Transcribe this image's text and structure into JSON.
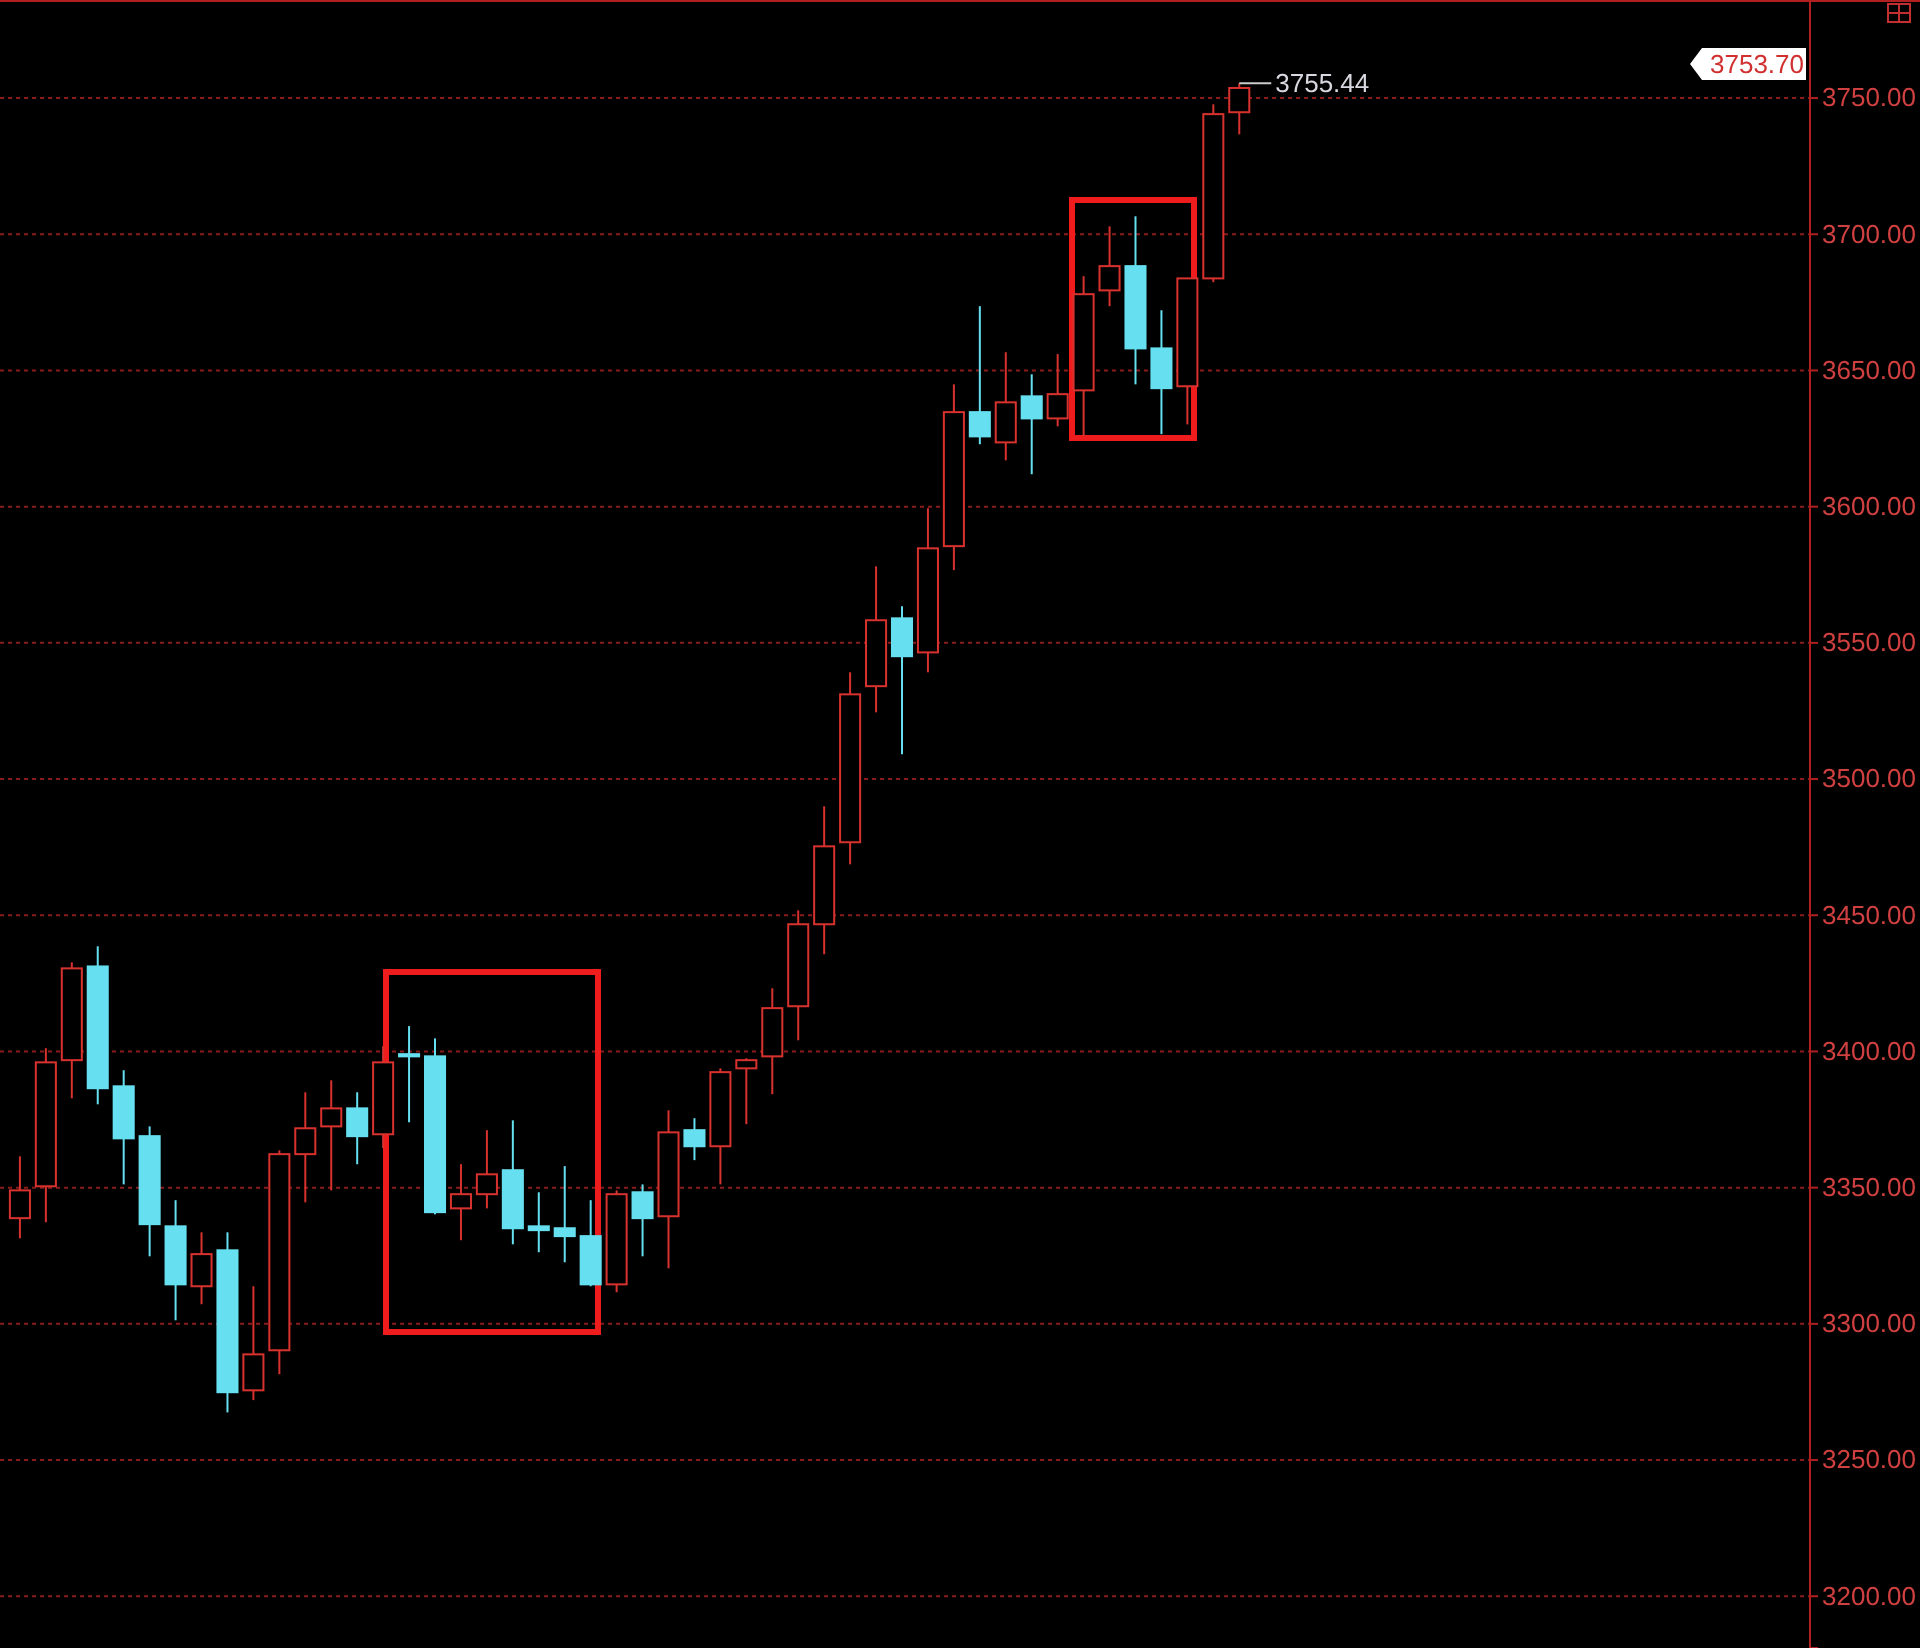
{
  "chart_data": {
    "type": "candlestick",
    "categories": [
      null,
      null,
      null,
      null,
      null,
      null,
      null,
      null,
      null,
      null,
      null,
      null,
      null,
      null,
      null,
      null,
      null,
      null,
      null,
      null,
      null,
      null,
      null,
      null,
      null,
      null,
      null,
      null,
      null,
      null,
      null,
      null,
      null,
      null,
      null,
      null,
      null,
      null,
      null,
      null,
      null,
      null,
      null,
      null,
      null,
      null,
      null,
      null,
      null,
      null,
      null,
      null,
      null,
      null,
      null,
      null,
      null,
      null,
      null,
      null,
      null,
      null,
      null,
      null,
      null,
      null,
      null,
      null,
      null
    ],
    "ohlc": [
      [
        3338.8,
        3361.5,
        3331.4,
        3349.0
      ],
      [
        3350.5,
        3401.2,
        3337.3,
        3396.0
      ],
      [
        3396.8,
        3432.7,
        3382.8,
        3430.5
      ],
      [
        3431.2,
        3438.6,
        3380.6,
        3386.5
      ],
      [
        3387.2,
        3393.1,
        3351.2,
        3368.1
      ],
      [
        3368.9,
        3372.5,
        3324.8,
        3336.6
      ],
      [
        3335.8,
        3345.4,
        3301.3,
        3314.5
      ],
      [
        3313.8,
        3333.6,
        3307.2,
        3325.6
      ],
      [
        3327.0,
        3333.6,
        3267.5,
        3274.9
      ],
      [
        3275.6,
        3313.8,
        3272.0,
        3288.8
      ],
      [
        3290.3,
        3363.7,
        3281.5,
        3362.3
      ],
      [
        3362.3,
        3385.0,
        3344.6,
        3371.8
      ],
      [
        3372.5,
        3389.4,
        3349.0,
        3379.1
      ],
      [
        3379.1,
        3385.0,
        3358.6,
        3368.9
      ],
      [
        3369.6,
        3401.9,
        3364.5,
        3396.0
      ],
      [
        3399.0,
        3409.3,
        3374.0,
        3398.2
      ],
      [
        3398.2,
        3404.8,
        3340.2,
        3341.0
      ],
      [
        3342.4,
        3358.6,
        3330.7,
        3347.6
      ],
      [
        3347.6,
        3371.1,
        3342.4,
        3354.9
      ],
      [
        3356.4,
        3374.7,
        3329.2,
        3335.1
      ],
      [
        3335.8,
        3348.3,
        3326.3,
        3334.4
      ],
      [
        3335.1,
        3357.9,
        3322.6,
        3332.2
      ],
      [
        3332.2,
        3345.4,
        3313.8,
        3314.5
      ],
      [
        3314.5,
        3349.0,
        3311.6,
        3347.6
      ],
      [
        3348.3,
        3351.2,
        3324.8,
        3338.8
      ],
      [
        3339.5,
        3378.4,
        3320.4,
        3370.3
      ],
      [
        3371.1,
        3375.5,
        3360.1,
        3365.2
      ],
      [
        3365.2,
        3393.8,
        3351.2,
        3392.4
      ],
      [
        3393.8,
        3397.5,
        3373.3,
        3396.8
      ],
      [
        3398.2,
        3423.2,
        3384.3,
        3415.9
      ],
      [
        3416.6,
        3451.8,
        3404.1,
        3446.7
      ],
      [
        3446.7,
        3490.0,
        3435.7,
        3475.3
      ],
      [
        3476.8,
        3539.2,
        3468.7,
        3531.1
      ],
      [
        3534.1,
        3578.1,
        3524.5,
        3558.3
      ],
      [
        3559.0,
        3563.4,
        3509.1,
        3545.1
      ],
      [
        3546.5,
        3599.4,
        3539.2,
        3584.7
      ],
      [
        3585.5,
        3644.9,
        3576.7,
        3634.7
      ],
      [
        3634.7,
        3673.6,
        3622.9,
        3625.8
      ],
      [
        3623.6,
        3656.7,
        3617.0,
        3638.3
      ],
      [
        3640.5,
        3648.6,
        3611.9,
        3632.4
      ],
      [
        3632.4,
        3656.0,
        3629.5,
        3641.3
      ],
      [
        3642.7,
        3684.6,
        3625.8,
        3678.0
      ],
      [
        3679.4,
        3702.9,
        3673.6,
        3688.3
      ],
      [
        3688.3,
        3706.6,
        3644.9,
        3658.1
      ],
      [
        3658.1,
        3672.1,
        3626.6,
        3643.5
      ],
      [
        3644.2,
        3683.8,
        3630.2,
        3683.8
      ],
      [
        3683.8,
        3747.7,
        3682.4,
        3744.1
      ],
      [
        3744.8,
        3755.44,
        3736.7,
        3753.7
      ],
      null,
      null,
      null,
      null,
      null,
      null,
      null,
      null,
      null,
      null,
      null,
      null,
      null,
      null,
      null,
      null,
      null,
      null,
      null,
      null,
      null
    ],
    "colors": [
      "#d8322f",
      "#d8322f",
      "#d8322f",
      "#66e0f0",
      "#66e0f0",
      "#66e0f0",
      "#66e0f0",
      "#d8322f",
      "#66e0f0",
      "#d8322f",
      "#d8322f",
      "#d8322f",
      "#d8322f",
      "#66e0f0",
      "#d8322f",
      "#66e0f0",
      "#66e0f0",
      "#d8322f",
      "#d8322f",
      "#66e0f0",
      "#66e0f0",
      "#66e0f0",
      "#66e0f0",
      "#d8322f",
      "#66e0f0",
      "#d8322f",
      "#66e0f0",
      "#d8322f",
      "#d8322f",
      "#d8322f",
      "#d8322f",
      "#d8322f",
      "#d8322f",
      "#d8322f",
      "#66e0f0",
      "#d8322f",
      "#d8322f",
      "#66e0f0",
      "#d8322f",
      "#66e0f0",
      "#d8322f",
      "#d8322f",
      "#d8322f",
      "#66e0f0",
      "#66e0f0",
      "#d8322f",
      "#d8322f",
      "#d8322f",
      null,
      null,
      null,
      null,
      null,
      null,
      null,
      null,
      null,
      null,
      null,
      null,
      null,
      null,
      null,
      null,
      null,
      null,
      null,
      null,
      null
    ],
    "ylim": [
      3181,
      3786
    ],
    "yticks": [
      {
        "value": 3200,
        "label": "3200.00"
      },
      {
        "value": 3250,
        "label": "3250.00"
      },
      {
        "value": 3300,
        "label": "3300.00"
      },
      {
        "value": 3350,
        "label": "3350.00"
      },
      {
        "value": 3400,
        "label": "3400.00"
      },
      {
        "value": 3450,
        "label": "3450.00"
      },
      {
        "value": 3500,
        "label": "3500.00"
      },
      {
        "value": 3550,
        "label": "3550.00"
      },
      {
        "value": 3600,
        "label": "3600.00"
      },
      {
        "value": 3650,
        "label": "3650.00"
      },
      {
        "value": 3700,
        "label": "3700.00"
      },
      {
        "value": 3750,
        "label": "3750.00"
      }
    ],
    "grid": "y",
    "annotations": [
      "3755.44",
      "3753.70"
    ]
  }
}
